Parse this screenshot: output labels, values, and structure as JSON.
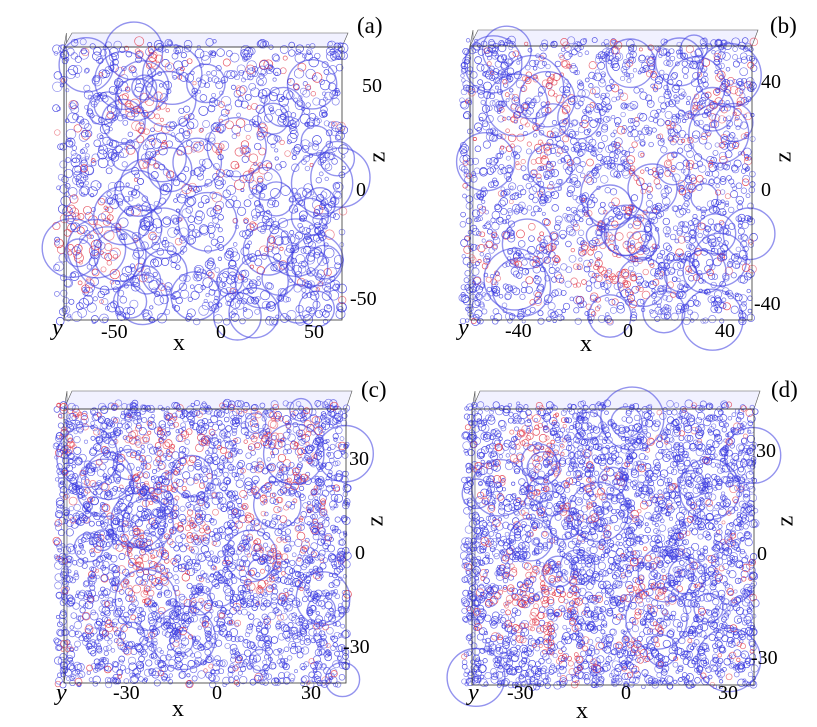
{
  "colors": {
    "cell_blue": "#3b3be0",
    "cell_red": "#e23a4a",
    "background": "#ffffff"
  },
  "panels": [
    {
      "label": "(a)",
      "axis_x": "x",
      "axis_y": "y",
      "axis_z": "z",
      "x_ticks": [
        "-50",
        "0",
        "50"
      ],
      "z_ticks": [
        "50",
        "0",
        "-50"
      ]
    },
    {
      "label": "(b)",
      "axis_x": "x",
      "axis_y": "y",
      "axis_z": "z",
      "x_ticks": [
        "-40",
        "0",
        "40"
      ],
      "z_ticks": [
        "40",
        "0",
        "-40"
      ]
    },
    {
      "label": "(c)",
      "axis_x": "x",
      "axis_y": "y",
      "axis_z": "z",
      "x_ticks": [
        "-30",
        "0",
        "30"
      ],
      "z_ticks": [
        "30",
        "0",
        "-30"
      ]
    },
    {
      "label": "(d)",
      "axis_x": "x",
      "axis_y": "y",
      "axis_z": "z",
      "x_ticks": [
        "-30",
        "0",
        "30"
      ],
      "z_ticks": [
        "30",
        "0",
        "-30"
      ]
    }
  ]
}
